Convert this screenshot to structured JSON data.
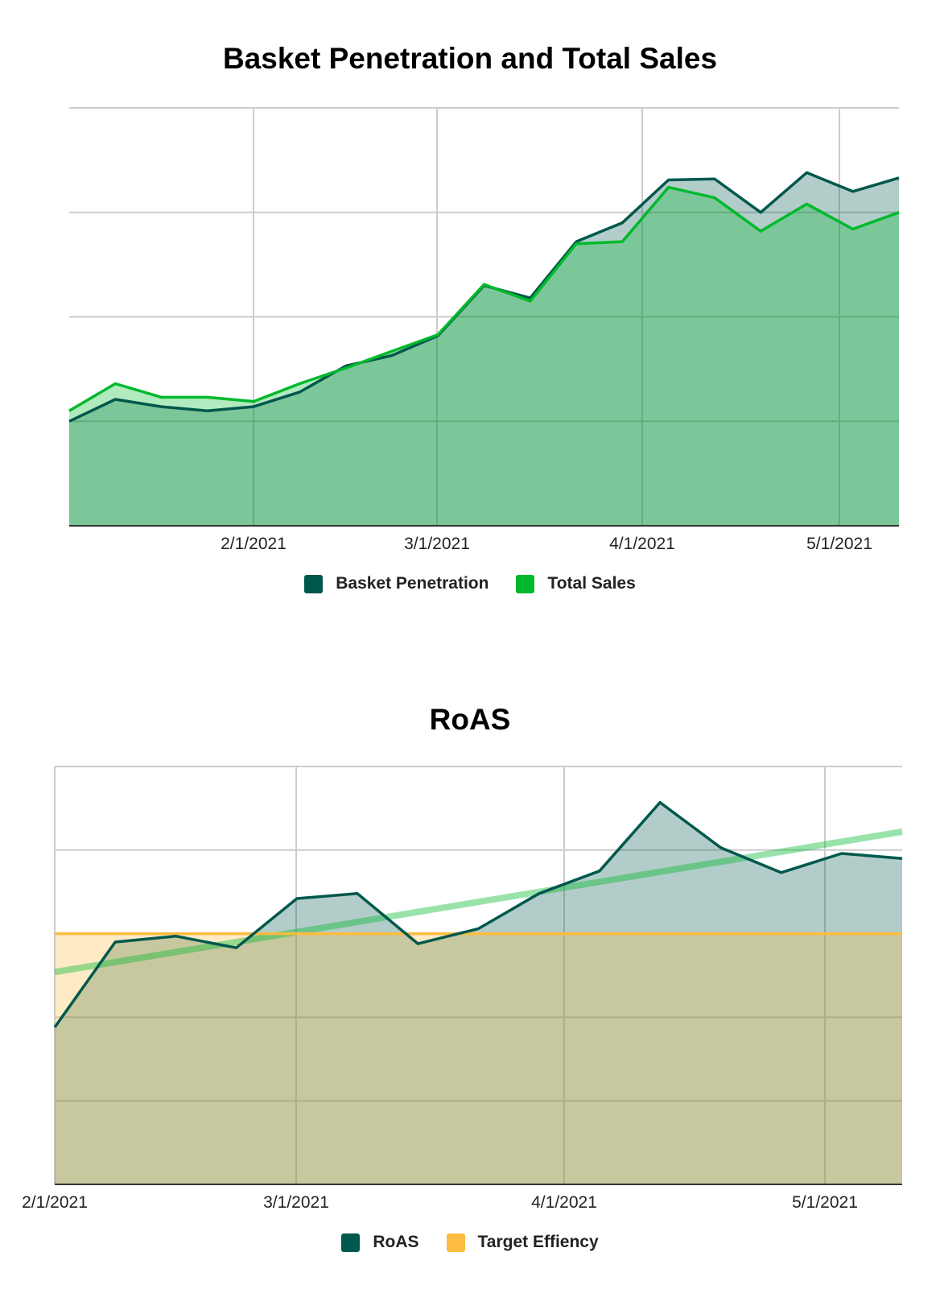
{
  "charts": {
    "basket": {
      "title": "Basket Penetration and Total Sales",
      "x_ticks": [
        "2/1/2021",
        "3/1/2021",
        "4/1/2021",
        "5/1/2021"
      ],
      "legend": [
        {
          "label": "Basket Penetration",
          "color": "#00584c"
        },
        {
          "label": "Total Sales",
          "color": "#00b92c"
        }
      ]
    },
    "roas": {
      "title": "RoAS",
      "x_ticks": [
        "2/1/2021",
        "3/1/2021",
        "4/1/2021",
        "5/1/2021"
      ],
      "legend": [
        {
          "label": "RoAS",
          "color": "#00584c"
        },
        {
          "label": "Target Effiency",
          "color": "#fbbc41"
        }
      ]
    }
  },
  "chart_data": [
    {
      "type": "area",
      "title": "Basket Penetration and Total Sales",
      "xlabel": "",
      "ylabel": "",
      "x": [
        "1/4/2021",
        "1/11/2021",
        "1/18/2021",
        "1/25/2021",
        "2/1/2021",
        "2/8/2021",
        "2/15/2021",
        "2/22/2021",
        "3/1/2021",
        "3/8/2021",
        "3/15/2021",
        "3/22/2021",
        "3/29/2021",
        "4/5/2021",
        "4/12/2021",
        "4/19/2021",
        "4/26/2021",
        "5/3/2021",
        "5/10/2021"
      ],
      "x_ticks": [
        "2/1/2021",
        "3/1/2021",
        "4/1/2021",
        "5/1/2021"
      ],
      "ylim": [
        0,
        4
      ],
      "y_gridlines": 4,
      "y_tick_labels_visible": false,
      "grid": true,
      "legend_position": "bottom",
      "series": [
        {
          "name": "Basket Penetration",
          "color": "#00584c",
          "values": [
            1.0,
            1.21,
            1.14,
            1.1,
            1.14,
            1.28,
            1.53,
            1.63,
            1.82,
            2.3,
            2.18,
            2.72,
            2.9,
            3.31,
            3.32,
            3.0,
            3.38,
            3.2,
            3.33
          ]
        },
        {
          "name": "Total Sales",
          "color": "#00b92c",
          "values": [
            1.1,
            1.36,
            1.23,
            1.23,
            1.19,
            1.36,
            1.51,
            1.67,
            1.83,
            2.31,
            2.15,
            2.7,
            2.72,
            3.24,
            3.14,
            2.82,
            3.08,
            2.84,
            3.0
          ]
        }
      ]
    },
    {
      "type": "area",
      "title": "RoAS",
      "xlabel": "",
      "ylabel": "",
      "x": [
        "2/1/2021",
        "2/8/2021",
        "2/15/2021",
        "2/22/2021",
        "3/1/2021",
        "3/8/2021",
        "3/15/2021",
        "3/22/2021",
        "3/29/2021",
        "4/5/2021",
        "4/12/2021",
        "4/19/2021",
        "4/26/2021",
        "5/3/2021",
        "5/10/2021"
      ],
      "x_ticks": [
        "2/1/2021",
        "3/1/2021",
        "4/1/2021",
        "5/1/2021"
      ],
      "ylim": [
        0,
        5
      ],
      "y_gridlines": 5,
      "y_tick_labels_visible": false,
      "grid": true,
      "legend_position": "bottom",
      "series": [
        {
          "name": "RoAS",
          "color": "#00584c",
          "values": [
            1.88,
            2.9,
            2.97,
            2.83,
            3.42,
            3.48,
            2.88,
            3.06,
            3.48,
            3.75,
            4.57,
            4.03,
            3.73,
            3.96,
            3.9
          ]
        },
        {
          "name": "Target Effiency",
          "color": "#fbbc41",
          "values": [
            3.0,
            3.0,
            3.0,
            3.0,
            3.0,
            3.0,
            3.0,
            3.0,
            3.0,
            3.0,
            3.0,
            3.0,
            3.0,
            3.0,
            3.0
          ]
        },
        {
          "name": "RoAS trendline",
          "color": "#7fd98f",
          "values_start_end": [
            2.54,
            4.22
          ]
        }
      ]
    }
  ]
}
